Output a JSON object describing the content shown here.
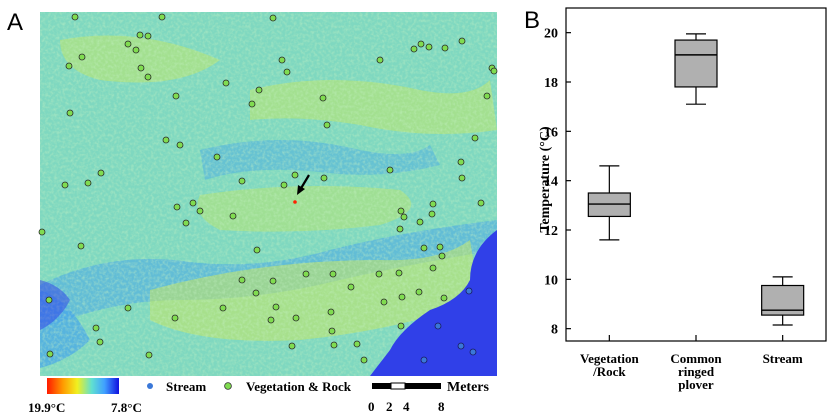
{
  "panels": {
    "a": {
      "letter": "A"
    },
    "b": {
      "letter": "B"
    }
  },
  "colors": {
    "map_base": "#7fd8c0",
    "map_cool": "#4aa8e8",
    "map_warm": "#c8e860",
    "stream_water": "#3040e8",
    "stream_dot": "#3a78d8",
    "vegetation_dot": "#80dc50",
    "plover_point": "#ff2000",
    "box_fill": "#b0b0b0"
  },
  "legend": {
    "scale_max_label": "19.9°C",
    "scale_min_label": "7.8°C",
    "stream_label": "Stream",
    "vegetation_label": "Vegetation & Rock",
    "meters_label": "Meters",
    "scale_ticks": [
      "0",
      "2",
      "4",
      "8"
    ]
  },
  "chart_data": {
    "type": "box",
    "title": "",
    "xlabel": "",
    "ylabel": "Temperature (°C)",
    "ylim": [
      7.5,
      21
    ],
    "yticks": [
      8,
      10,
      12,
      14,
      16,
      18,
      20
    ],
    "grid": false,
    "categories": [
      [
        "Vegetation",
        "/Rock"
      ],
      [
        "Common",
        "ringed",
        "plover"
      ],
      [
        "Stream"
      ]
    ],
    "boxes": [
      {
        "min": 11.6,
        "q1": 12.55,
        "median": 13.05,
        "q3": 13.5,
        "max": 14.6
      },
      {
        "min": 17.1,
        "q1": 17.8,
        "median": 19.1,
        "q3": 19.7,
        "max": 19.95
      },
      {
        "min": 8.15,
        "q1": 8.55,
        "median": 8.75,
        "q3": 9.75,
        "max": 10.1
      }
    ]
  }
}
